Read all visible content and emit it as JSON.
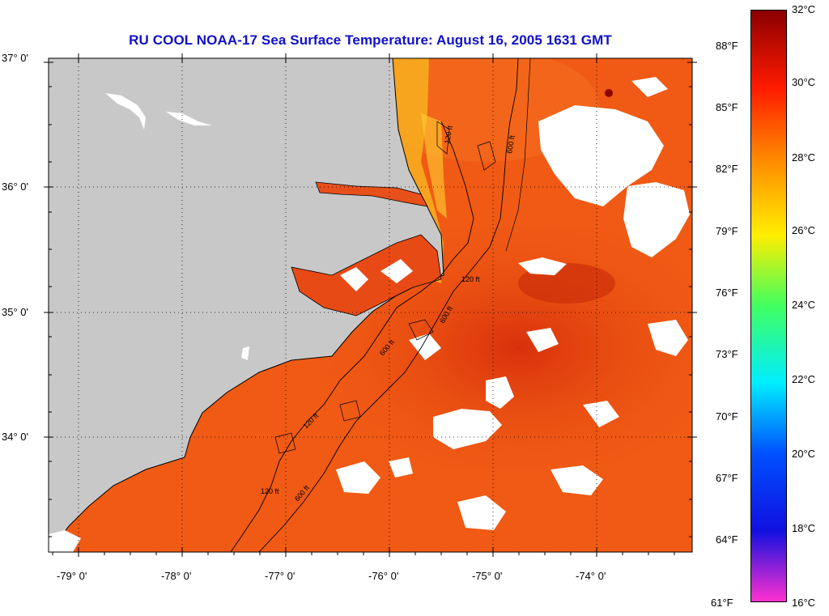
{
  "title": "RU COOL  NOAA-17  Sea Surface Temperature:  August 16, 2005 1631 GMT",
  "map": {
    "lat_labels": [
      "37° 0'",
      "36° 0'",
      "35° 0'",
      "34° 0'"
    ],
    "lon_labels": [
      "-79° 0'",
      "-78° 0'",
      "-77° 0'",
      "-76° 0'",
      "-75° 0'",
      "-74° 0'"
    ],
    "contours": [
      "120 ft",
      "600 ft",
      "120 ft",
      "600 ft",
      "120 ft",
      "600 ft",
      "120 ft",
      "600 ft"
    ],
    "colors": {
      "land": "#c8c8c8",
      "ocean": "#f05a14",
      "ocean_warm": "#e23a0e",
      "coastal_cool": "#f8b020",
      "cloud": "#ffffff"
    }
  },
  "colorbar": {
    "fahrenheit": [
      "88°F",
      "85°F",
      "82°F",
      "79°F",
      "76°F",
      "73°F",
      "70°F",
      "67°F",
      "64°F",
      "61°F"
    ],
    "celsius": [
      "32°C",
      "30°C",
      "28°C",
      "26°C",
      "24°C",
      "22°C",
      "20°C",
      "18°C",
      "16°C"
    ],
    "colors": [
      "#8b0000",
      "#ff1a00",
      "#ff8800",
      "#ffee00",
      "#40ff60",
      "#00eeff",
      "#0050ff",
      "#1010e0",
      "#ff30d0"
    ]
  }
}
